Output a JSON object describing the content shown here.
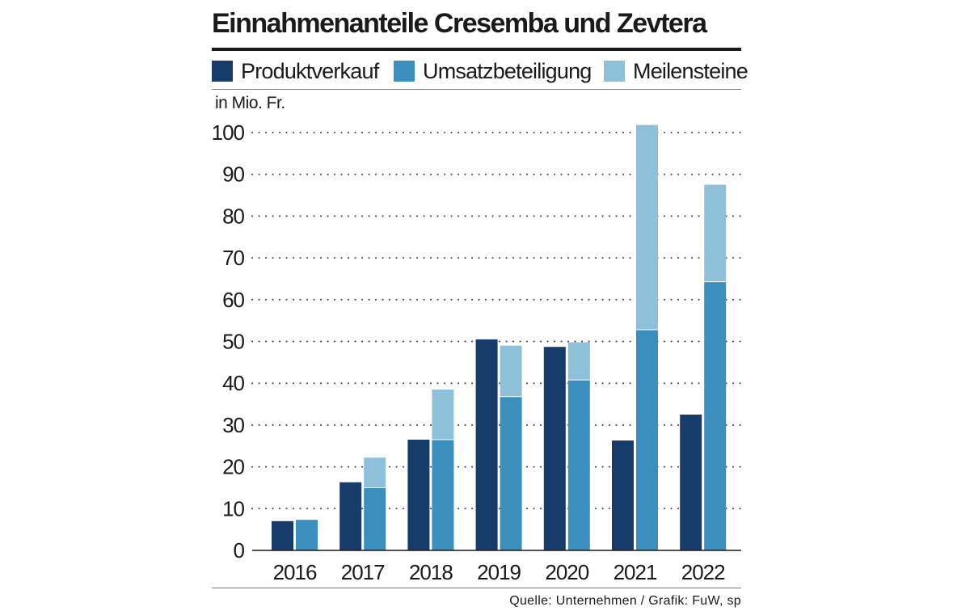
{
  "colors": {
    "produktverkauf": "#173c6c",
    "umsatzbeteiligung": "#3a8fbe",
    "meilensteine": "#8fc0da"
  },
  "chart_data": {
    "type": "bar",
    "stacked_series": [
      "Umsatzbeteiligung",
      "Meilensteine"
    ],
    "title": "Einnahmenanteile Cresemba und Zevtera",
    "ylabel": "in Mio. Fr.",
    "xlabel": "",
    "ylim": [
      0,
      100
    ],
    "yticks": [
      0,
      10,
      20,
      30,
      40,
      50,
      60,
      70,
      80,
      90,
      100
    ],
    "grid": "horizontal dotted",
    "legend_position": "top",
    "categories": [
      "2016",
      "2017",
      "2018",
      "2019",
      "2020",
      "2021",
      "2022"
    ],
    "series": [
      {
        "name": "Produktverkauf",
        "values": [
          7,
          16.3,
          26.5,
          50.5,
          48.7,
          26.3,
          32.5
        ]
      },
      {
        "name": "Umsatzbeteiligung",
        "values": [
          7.3,
          15,
          26.5,
          36.8,
          40.8,
          52.8,
          64.3
        ]
      },
      {
        "name": "Meilensteine",
        "values": [
          0,
          7.2,
          12,
          12.2,
          9,
          49,
          23.2
        ]
      }
    ],
    "source": "Quelle: Unternehmen / Grafik: FuW, sp"
  }
}
